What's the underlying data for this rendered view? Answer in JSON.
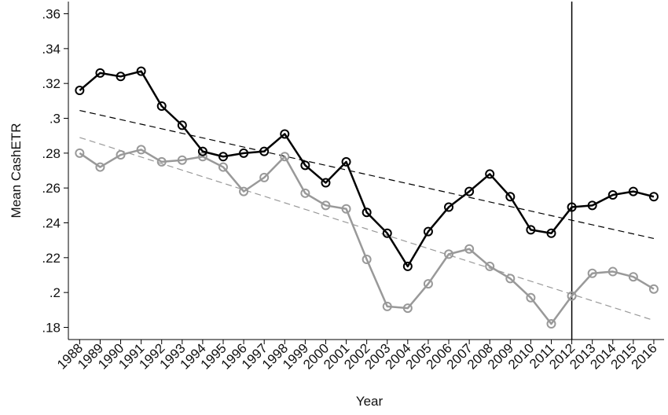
{
  "chart_data": {
    "type": "line",
    "xlabel": "Year",
    "ylabel": "Mean CashETR",
    "x": [
      1988,
      1989,
      1990,
      1991,
      1992,
      1993,
      1994,
      1995,
      1996,
      1997,
      1998,
      1999,
      2000,
      2001,
      2002,
      2003,
      2004,
      2005,
      2006,
      2007,
      2008,
      2009,
      2010,
      2011,
      2012,
      2013,
      2014,
      2015,
      2016
    ],
    "series": [
      {
        "color": "#000000",
        "values": [
          0.316,
          0.326,
          0.324,
          0.327,
          0.307,
          0.296,
          0.281,
          0.278,
          0.28,
          0.281,
          0.291,
          0.273,
          0.263,
          0.275,
          0.246,
          0.234,
          0.215,
          0.235,
          0.249,
          0.258,
          0.268,
          0.255,
          0.236,
          0.234,
          0.249,
          0.25,
          0.256,
          0.258,
          0.255
        ]
      },
      {
        "color": "#999999",
        "values": [
          0.28,
          0.272,
          0.279,
          0.282,
          0.275,
          0.276,
          0.278,
          0.272,
          0.258,
          0.266,
          0.278,
          0.257,
          0.25,
          0.248,
          0.219,
          0.192,
          0.191,
          0.205,
          0.222,
          0.225,
          0.215,
          0.208,
          0.197,
          0.182,
          0.198,
          0.211,
          0.212,
          0.209,
          0.202
        ]
      }
    ],
    "trend_lines": [
      {
        "color": "#000000",
        "x": [
          1988,
          2016
        ],
        "values": [
          0.3045,
          0.231
        ]
      },
      {
        "color": "#999999",
        "x": [
          1988,
          2016
        ],
        "values": [
          0.289,
          0.184
        ]
      }
    ],
    "vline": 2012,
    "xlim": [
      1987.45,
      2016.5
    ],
    "xticks": [
      1988,
      1989,
      1990,
      1991,
      1992,
      1993,
      1994,
      1995,
      1996,
      1997,
      1998,
      1999,
      2000,
      2001,
      2002,
      2003,
      2004,
      2005,
      2006,
      2007,
      2008,
      2009,
      2010,
      2011,
      2012,
      2013,
      2014,
      2015,
      2016
    ],
    "ylim": [
      0.173,
      0.367
    ],
    "yticks": [
      {
        "value": 0.36,
        "label": ".36"
      },
      {
        "value": 0.34,
        "label": ".34"
      },
      {
        "value": 0.32,
        "label": ".32"
      },
      {
        "value": 0.3,
        "label": ".3"
      },
      {
        "value": 0.28,
        "label": ".28"
      },
      {
        "value": 0.26,
        "label": ".26"
      },
      {
        "value": 0.24,
        "label": ".24"
      },
      {
        "value": 0.22,
        "label": ".22"
      },
      {
        "value": 0.2,
        "label": ".2"
      },
      {
        "value": 0.18,
        "label": ".18"
      }
    ],
    "grid": false
  }
}
